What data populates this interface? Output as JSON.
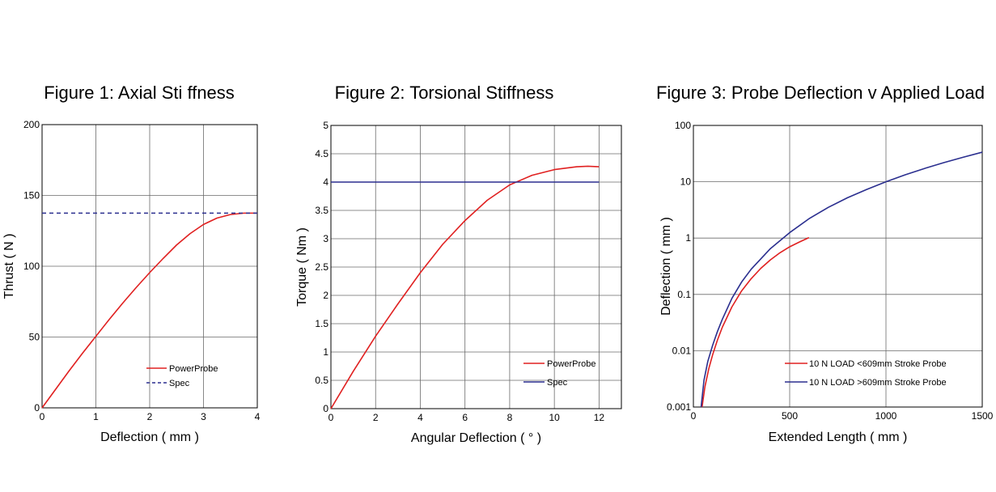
{
  "chart_data": [
    {
      "type": "line",
      "title": "Figure 1: Axial Sti ffness",
      "xlabel": "Deflection ( mm )",
      "ylabel": "Thrust ( N )",
      "xlim": [
        0,
        4
      ],
      "ylim": [
        0,
        200
      ],
      "xscale": "linear",
      "yscale": "linear",
      "grid": true,
      "x_ticks": [
        0,
        1,
        2,
        3,
        4
      ],
      "y_ticks": [
        0,
        50,
        100,
        150,
        200
      ],
      "legend_position": "bottom-right",
      "series": [
        {
          "name": "PowerProbe",
          "color": "#e02020",
          "dash": "solid",
          "x": [
            0,
            0.25,
            0.5,
            0.75,
            1.0,
            1.25,
            1.5,
            1.75,
            2.0,
            2.25,
            2.5,
            2.75,
            3.0,
            3.25,
            3.5,
            3.75,
            4.0
          ],
          "y": [
            0,
            13,
            26,
            38.5,
            50.5,
            62.5,
            74,
            85,
            95.5,
            105.5,
            115,
            123,
            129.5,
            134,
            136.5,
            137.5,
            137.5
          ]
        },
        {
          "name": "Spec",
          "color": "#2b2f8f",
          "dash": "dashed",
          "x": [
            0,
            4
          ],
          "y": [
            137.5,
            137.5
          ]
        }
      ]
    },
    {
      "type": "line",
      "title": "Figure 2: Torsional Stiffness",
      "xlabel": "Angular Deflection ( ° )",
      "ylabel": "Torque ( Nm )",
      "xlim": [
        0,
        13
      ],
      "ylim": [
        0,
        5
      ],
      "xscale": "linear",
      "yscale": "linear",
      "grid": true,
      "x_ticks": [
        0,
        2,
        4,
        6,
        8,
        10,
        12
      ],
      "y_ticks": [
        0,
        0.5,
        1,
        1.5,
        2,
        2.5,
        3,
        3.5,
        4,
        4.5,
        5
      ],
      "legend_position": "bottom-right",
      "series": [
        {
          "name": "PowerProbe",
          "color": "#e02020",
          "dash": "solid",
          "x": [
            0,
            1,
            2,
            3,
            4,
            5,
            6,
            7,
            8,
            9,
            10,
            11,
            11.5,
            12
          ],
          "y": [
            0,
            0.66,
            1.28,
            1.85,
            2.4,
            2.9,
            3.32,
            3.68,
            3.95,
            4.12,
            4.22,
            4.27,
            4.28,
            4.27
          ]
        },
        {
          "name": "Spec",
          "color": "#2b2f8f",
          "dash": "solid",
          "x": [
            0,
            12
          ],
          "y": [
            4,
            4
          ]
        }
      ]
    },
    {
      "type": "line",
      "title": "Figure 3: Probe Deflection v Applied Load",
      "xlabel": "Extended Length ( mm )",
      "ylabel": "Deflection ( mm )",
      "xlim": [
        0,
        1500
      ],
      "ylim": [
        0.001,
        100
      ],
      "xscale": "linear",
      "yscale": "log",
      "grid": true,
      "x_ticks": [
        0,
        500,
        1000,
        1500
      ],
      "y_ticks": [
        0.001,
        0.01,
        0.1,
        1,
        10,
        100
      ],
      "legend_position": "bottom-right",
      "series": [
        {
          "name": "10 N LOAD <609mm Stroke Probe",
          "color": "#e02020",
          "dash": "solid",
          "x": [
            45,
            60,
            80,
            100,
            125,
            150,
            200,
            250,
            300,
            350,
            400,
            450,
            500,
            550,
            600
          ],
          "y": [
            0.001,
            0.0023,
            0.0048,
            0.0085,
            0.0155,
            0.026,
            0.06,
            0.115,
            0.19,
            0.29,
            0.41,
            0.55,
            0.7,
            0.85,
            1.02
          ]
        },
        {
          "name": "10 N LOAD >609mm Stroke Probe",
          "color": "#2b2f8f",
          "dash": "solid",
          "x": [
            40,
            55,
            75,
            100,
            125,
            150,
            200,
            250,
            300,
            400,
            500,
            600,
            700,
            800,
            900,
            1000,
            1100,
            1200,
            1300,
            1400,
            1500
          ],
          "y": [
            0.001,
            0.003,
            0.0065,
            0.0125,
            0.022,
            0.036,
            0.085,
            0.165,
            0.28,
            0.65,
            1.25,
            2.2,
            3.5,
            5.2,
            7.3,
            10,
            13.3,
            17.2,
            21.8,
            27.2,
            33.5
          ]
        }
      ]
    }
  ]
}
